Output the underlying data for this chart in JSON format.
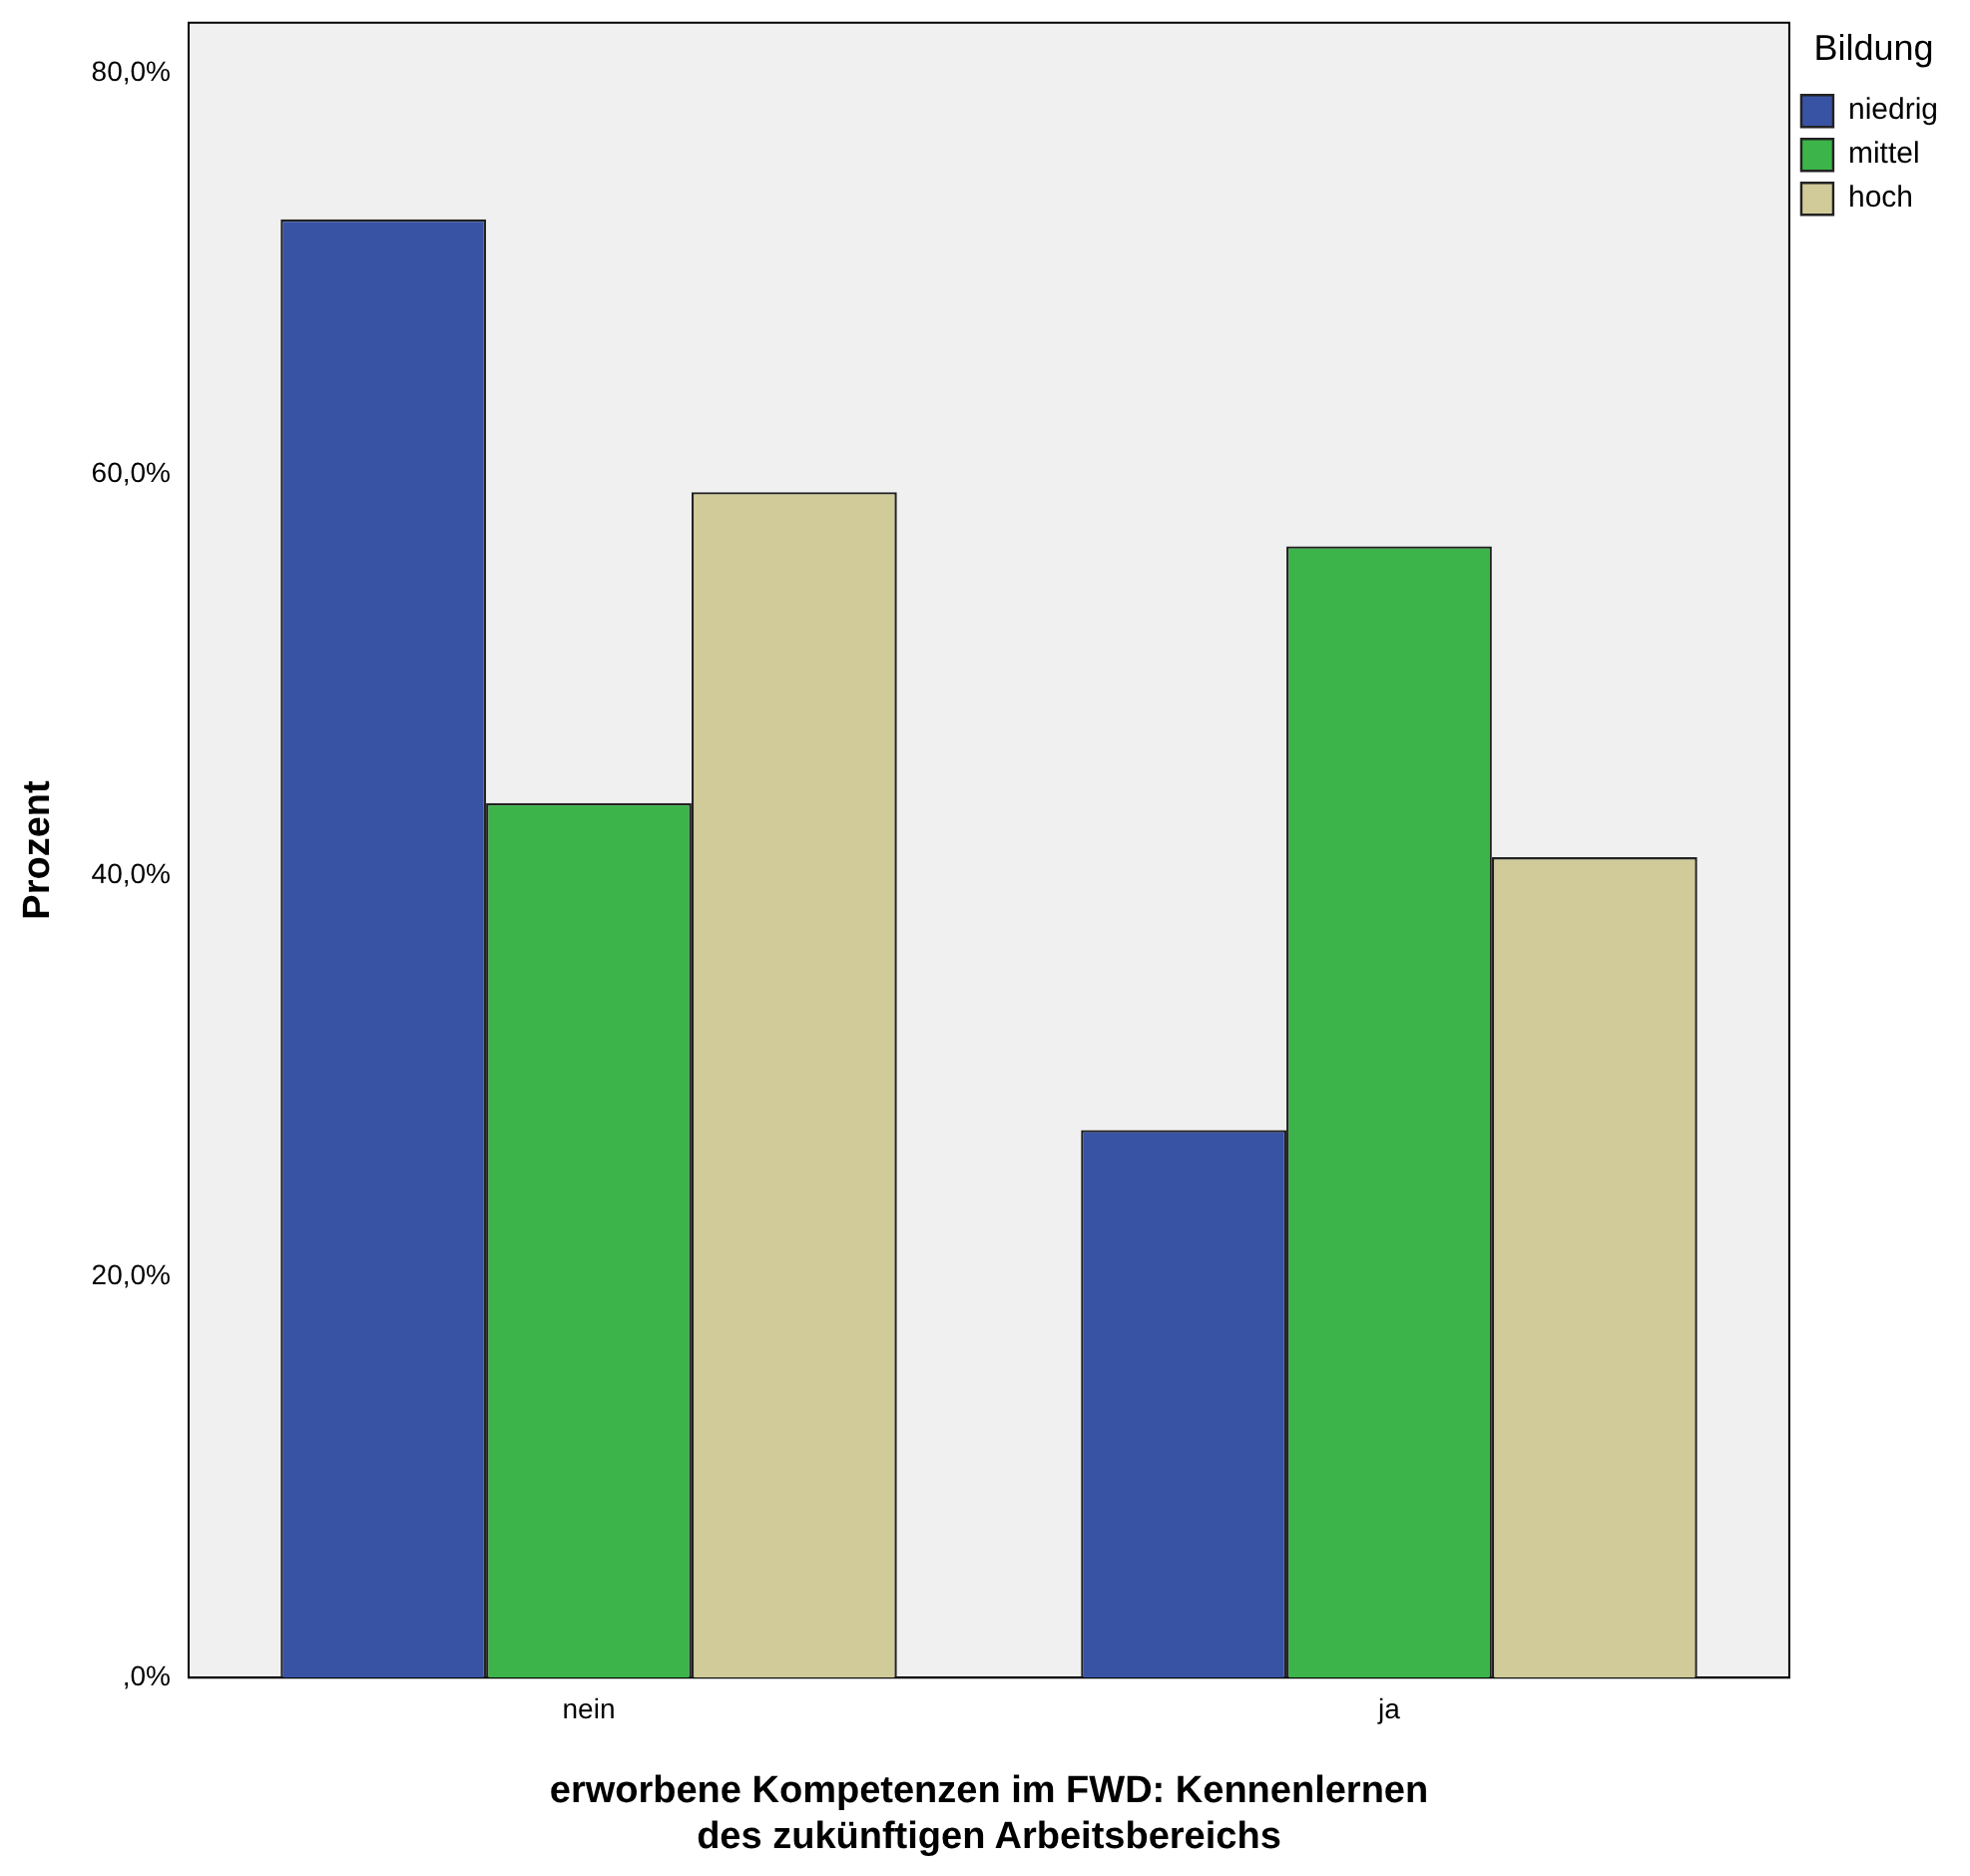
{
  "chart_data": {
    "type": "bar",
    "xlabel": "erworbene Kompetenzen im FWD: Kennenlernen des zukünftigen Arbeitsbereichs",
    "ylabel": "Prozent",
    "legend_title": "Bildung",
    "categories": [
      "nein",
      "ja"
    ],
    "series": [
      {
        "name": "niedrig",
        "color": "#3953a4",
        "values": [
          72.7,
          27.3
        ]
      },
      {
        "name": "mittel",
        "color": "#3cb44a",
        "values": [
          43.6,
          56.4
        ]
      },
      {
        "name": "hoch",
        "color": "#d0cb98",
        "values": [
          59.1,
          40.9
        ]
      }
    ],
    "ylim": [
      0,
      82.5
    ],
    "yticks": [
      {
        "value": 0,
        "label": ",0%"
      },
      {
        "value": 20,
        "label": "20,0%"
      },
      {
        "value": 40,
        "label": "40,0%"
      },
      {
        "value": 60,
        "label": "60,0%"
      },
      {
        "value": 80,
        "label": "80,0%"
      }
    ],
    "grid": false,
    "legend": "top right"
  }
}
